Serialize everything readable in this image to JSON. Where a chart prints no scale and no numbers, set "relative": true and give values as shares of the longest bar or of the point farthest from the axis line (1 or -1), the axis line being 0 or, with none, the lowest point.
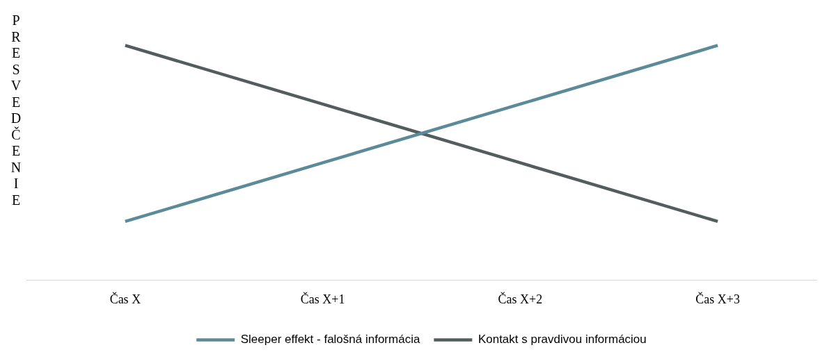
{
  "chart_data": {
    "type": "line",
    "ylabel": "PRESVEDČENIE",
    "categories": [
      "Čas X",
      "Čas X+1",
      "Čas X+2",
      "Čas X+3"
    ],
    "relative": true,
    "grid": false,
    "legend": "bottom",
    "marker": "none",
    "line_style": "solid",
    "series": [
      {
        "name": "Sleeper effekt - falošná informácia",
        "color": "#5b8a98",
        "values": [
          0.25,
          0.5,
          0.75,
          1
        ]
      },
      {
        "name": "Kontakt s pravdivou informáciou",
        "color": "#535d5d",
        "values": [
          1,
          0.75,
          0.5,
          0.25
        ]
      }
    ]
  }
}
